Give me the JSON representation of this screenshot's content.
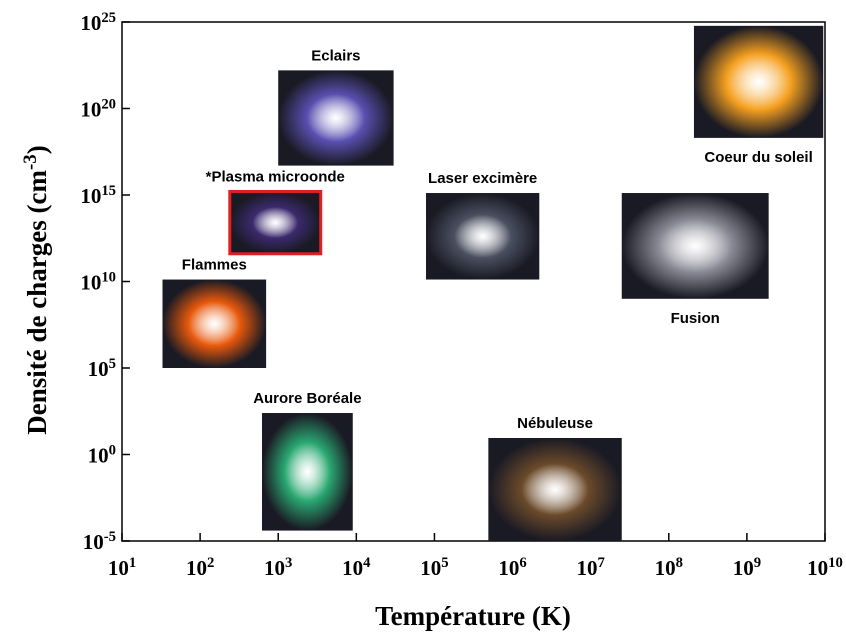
{
  "chart_data": {
    "type": "region-map",
    "x_label": "Température (K)",
    "y_label": "Densité de charges (cm^-3)",
    "log_x": true,
    "log_y": true,
    "xlim": [
      10,
      10000000000
    ],
    "ylim": [
      1e-05,
      1e+25
    ],
    "xticks": [
      {
        "value": 10,
        "label": "10^1"
      },
      {
        "value": 100,
        "label": "10^2"
      },
      {
        "value": 1000,
        "label": "10^3"
      },
      {
        "value": 10000,
        "label": "10^4"
      },
      {
        "value": 100000,
        "label": "10^5"
      },
      {
        "value": 1000000,
        "label": "10^6"
      },
      {
        "value": 10000000,
        "label": "10^7"
      },
      {
        "value": 100000000,
        "label": "10^8"
      },
      {
        "value": 1000000000,
        "label": "10^9"
      },
      {
        "value": 10000000000,
        "label": "10^10"
      }
    ],
    "yticks": [
      {
        "value": 1e-05,
        "label": "10^-5"
      },
      {
        "value": 1,
        "label": "10^0"
      },
      {
        "value": 100000,
        "label": "10^5"
      },
      {
        "value": 10000000000,
        "label": "10^10"
      },
      {
        "value": 1000000000000000.0,
        "label": "10^15"
      },
      {
        "value": 1e+20,
        "label": "10^20"
      },
      {
        "value": 1e+25,
        "label": "10^25"
      }
    ],
    "regions": [
      {
        "name": "Eclairs",
        "xlim": [
          1000,
          30000
        ],
        "ylim": [
          5e+16,
          1.6e+22
        ],
        "color": "#5a4fb0",
        "label_position": "above"
      },
      {
        "name": "*Plasma microonde",
        "xlim": [
          240,
          3500
        ],
        "ylim": [
          400000000000.0,
          1600000000000000.0
        ],
        "color": "#3b2a6e",
        "border": "#e02020",
        "label_position": "above"
      },
      {
        "name": "Laser excimère",
        "xlim": [
          78000,
          2200000
        ],
        "ylim": [
          13000000000.0,
          1300000000000000.0
        ],
        "color": "#4a5060",
        "label_position": "above"
      },
      {
        "name": "Coeur du soleil",
        "xlim": [
          210000000,
          9500000000
        ],
        "ylim": [
          2e+18,
          6e+24
        ],
        "color": "#f5a020",
        "label_position": "below"
      },
      {
        "name": "Fusion",
        "xlim": [
          25000000,
          1900000000
        ],
        "ylim": [
          1000000000.0,
          1300000000000000.0
        ],
        "color": "#8a8a96",
        "label_position": "below"
      },
      {
        "name": "Flammes",
        "xlim": [
          33,
          700
        ],
        "ylim": [
          100000,
          13000000000.0
        ],
        "color": "#e8590c",
        "label_position": "above"
      },
      {
        "name": "Aurore Boréale",
        "xlim": [
          620,
          9000
        ],
        "ylim": [
          4e-05,
          250
        ],
        "color": "#2aa872",
        "label_position": "above"
      },
      {
        "name": "Nébuleuse",
        "xlim": [
          490000,
          25000000
        ],
        "ylim": [
          1e-05,
          9
        ],
        "color": "#6b4a2a",
        "label_position": "above"
      }
    ]
  }
}
